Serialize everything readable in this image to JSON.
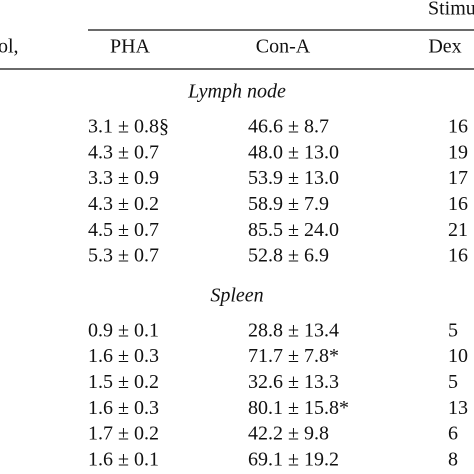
{
  "table": {
    "stub_header": "ol,",
    "spanner": "Stimu",
    "columns": [
      "PHA",
      "Con-A",
      "Dex"
    ],
    "sections": [
      {
        "title": "Lymph node",
        "rows": [
          [
            "3.1 ± 0.8§",
            "46.6 ± 8.7",
            "16"
          ],
          [
            "4.3 ± 0.7",
            "48.0 ± 13.0",
            "19"
          ],
          [
            "3.3 ± 0.9",
            "53.9 ± 13.0",
            "17"
          ],
          [
            "4.3 ± 0.2",
            "58.9 ± 7.9",
            "16"
          ],
          [
            "4.5 ± 0.7",
            "85.5 ± 24.0",
            "21"
          ],
          [
            "5.3 ± 0.7",
            "52.8 ± 6.9",
            "16"
          ]
        ]
      },
      {
        "title": "Spleen",
        "rows": [
          [
            "0.9 ± 0.1",
            "28.8 ± 13.4",
            "5"
          ],
          [
            "1.6 ± 0.3",
            "71.7 ± 7.8*",
            "10"
          ],
          [
            "1.5 ± 0.2",
            "32.6 ± 13.3",
            "5"
          ],
          [
            "1.6 ± 0.3",
            "80.1 ± 15.8*",
            "13"
          ],
          [
            "1.7 ± 0.2",
            "42.2 ± 9.8",
            "6"
          ],
          [
            "1.6 ± 0.1",
            "69.1 ± 19.2",
            "8"
          ]
        ]
      }
    ]
  }
}
